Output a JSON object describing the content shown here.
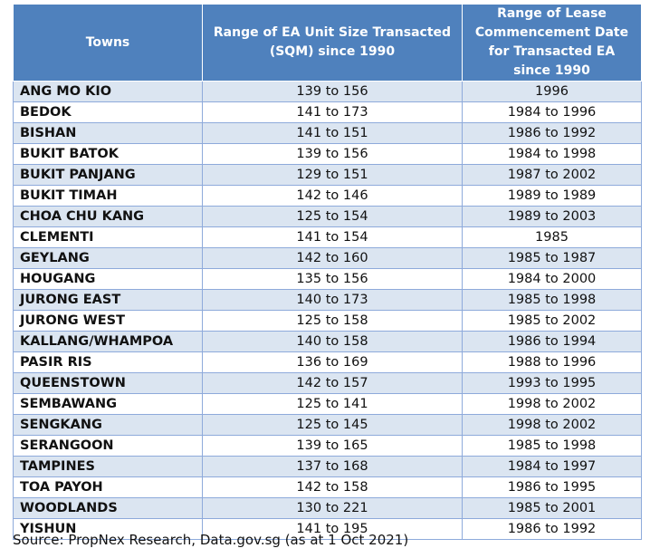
{
  "table": {
    "headers": [
      "Towns",
      "Range of EA Unit Size Transacted (SQM) since 1990",
      "Range of Lease Commencement Date for Transacted EA since 1990"
    ],
    "rows": [
      [
        "ANG MO KIO",
        "139 to 156",
        "1996"
      ],
      [
        "BEDOK",
        "141 to 173",
        "1984 to 1996"
      ],
      [
        "BISHAN",
        "141 to 151",
        "1986 to 1992"
      ],
      [
        "BUKIT BATOK",
        "139 to 156",
        "1984 to 1998"
      ],
      [
        "BUKIT PANJANG",
        "129 to 151",
        "1987 to 2002"
      ],
      [
        "BUKIT TIMAH",
        "142 to 146",
        "1989 to 1989"
      ],
      [
        "CHOA CHU KANG",
        "125 to 154",
        "1989 to 2003"
      ],
      [
        "CLEMENTI",
        "141 to 154",
        "1985"
      ],
      [
        "GEYLANG",
        "142 to 160",
        "1985 to 1987"
      ],
      [
        "HOUGANG",
        "135 to 156",
        "1984 to 2000"
      ],
      [
        "JURONG EAST",
        "140 to 173",
        "1985 to 1998"
      ],
      [
        "JURONG WEST",
        "125 to 158",
        "1985 to 2002"
      ],
      [
        "KALLANG/WHAMPOA",
        "140 to 158",
        "1986 to 1994"
      ],
      [
        "PASIR RIS",
        "136 to 169",
        "1988 to 1996"
      ],
      [
        "QUEENSTOWN",
        "142 to 157",
        "1993 to 1995"
      ],
      [
        "SEMBAWANG",
        "125 to 141",
        "1998 to 2002"
      ],
      [
        "SENGKANG",
        "125 to 145",
        "1998 to 2002"
      ],
      [
        "SERANGOON",
        "139 to 165",
        "1985 to 1998"
      ],
      [
        "TAMPINES",
        "137 to 168",
        "1984 to 1997"
      ],
      [
        "TOA PAYOH",
        "142 to 158",
        "1986 to 1995"
      ],
      [
        "WOODLANDS",
        "130 to 221",
        "1985 to 2001"
      ],
      [
        "YISHUN",
        "141 to 195",
        "1986 to 1992"
      ]
    ]
  },
  "source": "Source: PropNex Research, Data.gov.sg (as at 1 Oct 2021)",
  "colors": {
    "header_bg": "#4f81bd",
    "band_bg": "#dbe5f1",
    "border": "#8eaadb"
  }
}
